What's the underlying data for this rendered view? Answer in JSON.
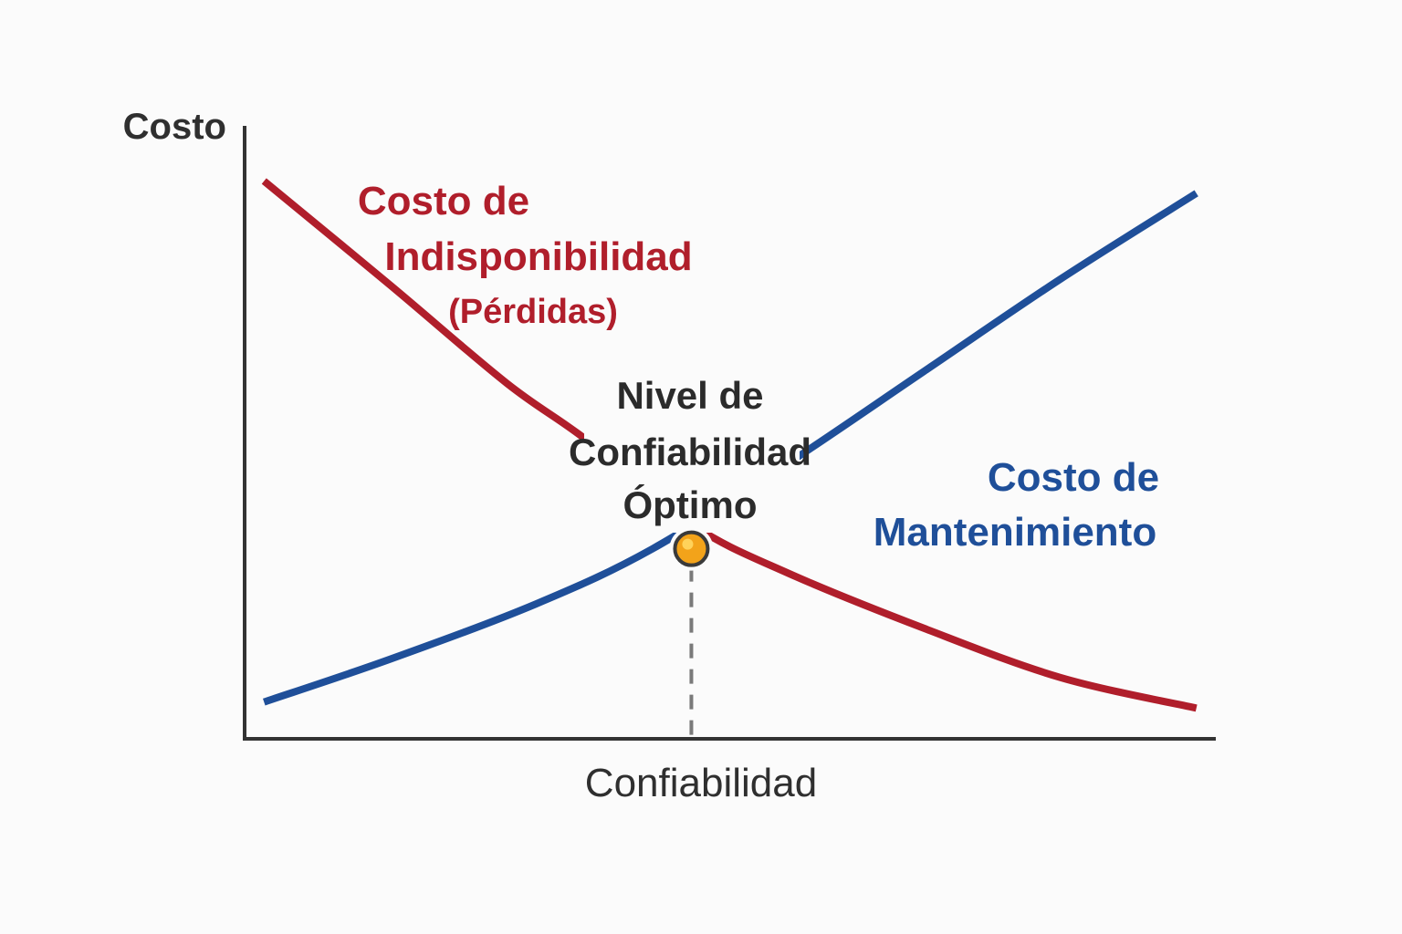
{
  "chart_data": {
    "type": "line",
    "ylabel": "Costo",
    "xlabel": "Confiabilidad",
    "grid": false,
    "legend": "none",
    "xlim": [
      0,
      100
    ],
    "ylim": [
      0,
      100
    ],
    "series": [
      {
        "name": "Costo de Indisponibilidad (Pérdidas)",
        "label_lines": [
          "Costo de",
          "Indisponibilidad",
          "(Pérdidas)"
        ],
        "color": "#b01e2b",
        "x": [
          2,
          15,
          27,
          35,
          46,
          56,
          70,
          84,
          98
        ],
        "y": [
          91,
          74,
          58,
          49,
          35,
          27,
          18,
          10,
          5
        ]
      },
      {
        "name": "Costo de Mantenimiento",
        "label_lines": [
          "Costo de",
          "Mantenimiento"
        ],
        "color": "#1f4f99",
        "x": [
          2,
          15,
          30,
          42,
          56,
          70,
          84,
          98
        ],
        "y": [
          6,
          13,
          22,
          31,
          45,
          60,
          75,
          89
        ]
      }
    ],
    "annotations": [
      {
        "text_lines": [
          "Nivel de",
          "Confiabilidad",
          "Óptimo"
        ],
        "x": 46,
        "y": 31,
        "marker_color": "#f3a31a"
      }
    ]
  }
}
